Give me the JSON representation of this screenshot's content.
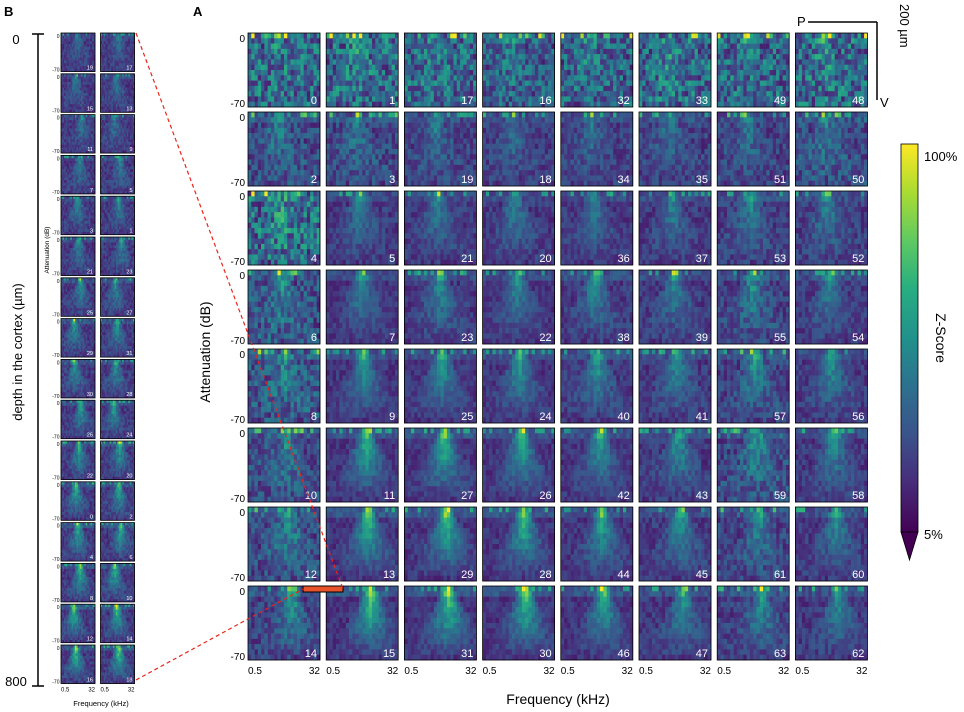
{
  "panel_a": {
    "label": "A",
    "ylabel": "Attenuation (dB)",
    "xlabel": "Frequency (kHz)",
    "ytick_top": "0",
    "ytick_bottom": "-70",
    "xtick_left": "0.5",
    "xtick_right": "32",
    "scale_bar": {
      "text": "200 µm",
      "p_label": "P",
      "v_label": "V"
    }
  },
  "panel_b": {
    "label": "B",
    "depth_label": "depth in the cortex (µm)",
    "depth_top": "0",
    "depth_bottom": "800",
    "ylabel": "Attenuation (dB)",
    "xlabel": "Frequency (kHz)",
    "ytick_top": "0",
    "ytick_bottom": "-70",
    "xtick_left": "0.5",
    "xtick_right": "32"
  },
  "colorbar": {
    "label": "Z-Score",
    "max_label": "100%",
    "min_label": "5%",
    "colormap": "viridis"
  },
  "colors": {
    "highlight": "#e8532b",
    "connector": "#e8261c"
  },
  "chart_data": [
    {
      "type": "heatmap",
      "title": "",
      "grid_rows": 8,
      "grid_cols": 8,
      "channel_grid": [
        [
          "0",
          "1",
          "17",
          "16",
          "32",
          "33",
          "49",
          "48"
        ],
        [
          "2",
          "3",
          "19",
          "18",
          "34",
          "35",
          "51",
          "50"
        ],
        [
          "4",
          "5",
          "21",
          "20",
          "36",
          "37",
          "53",
          "52"
        ],
        [
          "6",
          "7",
          "23",
          "22",
          "38",
          "39",
          "55",
          "54"
        ],
        [
          "8",
          "9",
          "25",
          "24",
          "40",
          "41",
          "57",
          "56"
        ],
        [
          "10",
          "11",
          "27",
          "26",
          "42",
          "43",
          "59",
          "58"
        ],
        [
          "12",
          "13",
          "29",
          "28",
          "44",
          "45",
          "61",
          "60"
        ],
        [
          "14",
          "15",
          "31",
          "30",
          "46",
          "47",
          "63",
          "62"
        ]
      ],
      "noise_level_grid": [
        [
          0.85,
          0.85,
          0.8,
          0.7,
          0.75,
          0.85,
          0.8,
          0.85
        ],
        [
          0.5,
          0.45,
          0.4,
          0.35,
          0.35,
          0.4,
          0.4,
          0.5
        ],
        [
          0.9,
          0.3,
          0.3,
          0.3,
          0.3,
          0.3,
          0.35,
          0.35
        ],
        [
          0.6,
          0.25,
          0.3,
          0.25,
          0.3,
          0.3,
          0.4,
          0.3
        ],
        [
          0.6,
          0.25,
          0.25,
          0.25,
          0.3,
          0.3,
          0.4,
          0.3
        ],
        [
          0.5,
          0.25,
          0.25,
          0.25,
          0.25,
          0.3,
          0.5,
          0.3
        ],
        [
          0.5,
          0.25,
          0.25,
          0.25,
          0.25,
          0.3,
          0.4,
          0.3
        ],
        [
          0.4,
          0.25,
          0.25,
          0.25,
          0.25,
          0.3,
          0.35,
          0.3
        ]
      ],
      "tuning_strength_grid": [
        [
          0.1,
          0.2,
          0.2,
          0.2,
          0.2,
          0.2,
          0.2,
          0.2
        ],
        [
          0.3,
          0.3,
          0.3,
          0.3,
          0.3,
          0.3,
          0.3,
          0.3
        ],
        [
          0.2,
          0.4,
          0.4,
          0.4,
          0.4,
          0.4,
          0.4,
          0.4
        ],
        [
          0.3,
          0.5,
          0.5,
          0.5,
          0.5,
          0.45,
          0.45,
          0.45
        ],
        [
          0.3,
          0.6,
          0.6,
          0.6,
          0.55,
          0.5,
          0.45,
          0.5
        ],
        [
          0.35,
          0.75,
          0.75,
          0.7,
          0.6,
          0.55,
          0.4,
          0.5
        ],
        [
          0.4,
          0.8,
          0.8,
          0.75,
          0.65,
          0.55,
          0.45,
          0.5
        ],
        [
          0.5,
          0.85,
          0.85,
          0.8,
          0.7,
          0.55,
          0.5,
          0.5
        ]
      ],
      "xlabel": "Frequency (kHz)",
      "ylabel": "Attenuation (dB)",
      "xlim": [
        0.5,
        32
      ],
      "ylim": [
        -70,
        0
      ],
      "colorbar": {
        "label": "Z-Score",
        "range": [
          "5%",
          "100%"
        ],
        "colormap": "viridis"
      }
    },
    {
      "type": "heatmap",
      "title": "",
      "grid_rows": 16,
      "grid_cols": 2,
      "channel_grid": [
        [
          "19",
          "17"
        ],
        [
          "15",
          "13"
        ],
        [
          "11",
          "9"
        ],
        [
          "7",
          "5"
        ],
        [
          "3",
          "1"
        ],
        [
          "21",
          "23"
        ],
        [
          "25",
          "27"
        ],
        [
          "29",
          "31"
        ],
        [
          "30",
          "28"
        ],
        [
          "26",
          "24"
        ],
        [
          "22",
          "20"
        ],
        [
          "0",
          "2"
        ],
        [
          "4",
          "6"
        ],
        [
          "8",
          "10"
        ],
        [
          "12",
          "14"
        ],
        [
          "16",
          "18"
        ]
      ],
      "xlabel": "Frequency (kHz)",
      "ylabel": "Attenuation (dB)",
      "xlim": [
        0.5,
        32
      ],
      "ylim": [
        -70,
        0
      ],
      "depth_range_um": [
        0,
        800
      ]
    }
  ]
}
